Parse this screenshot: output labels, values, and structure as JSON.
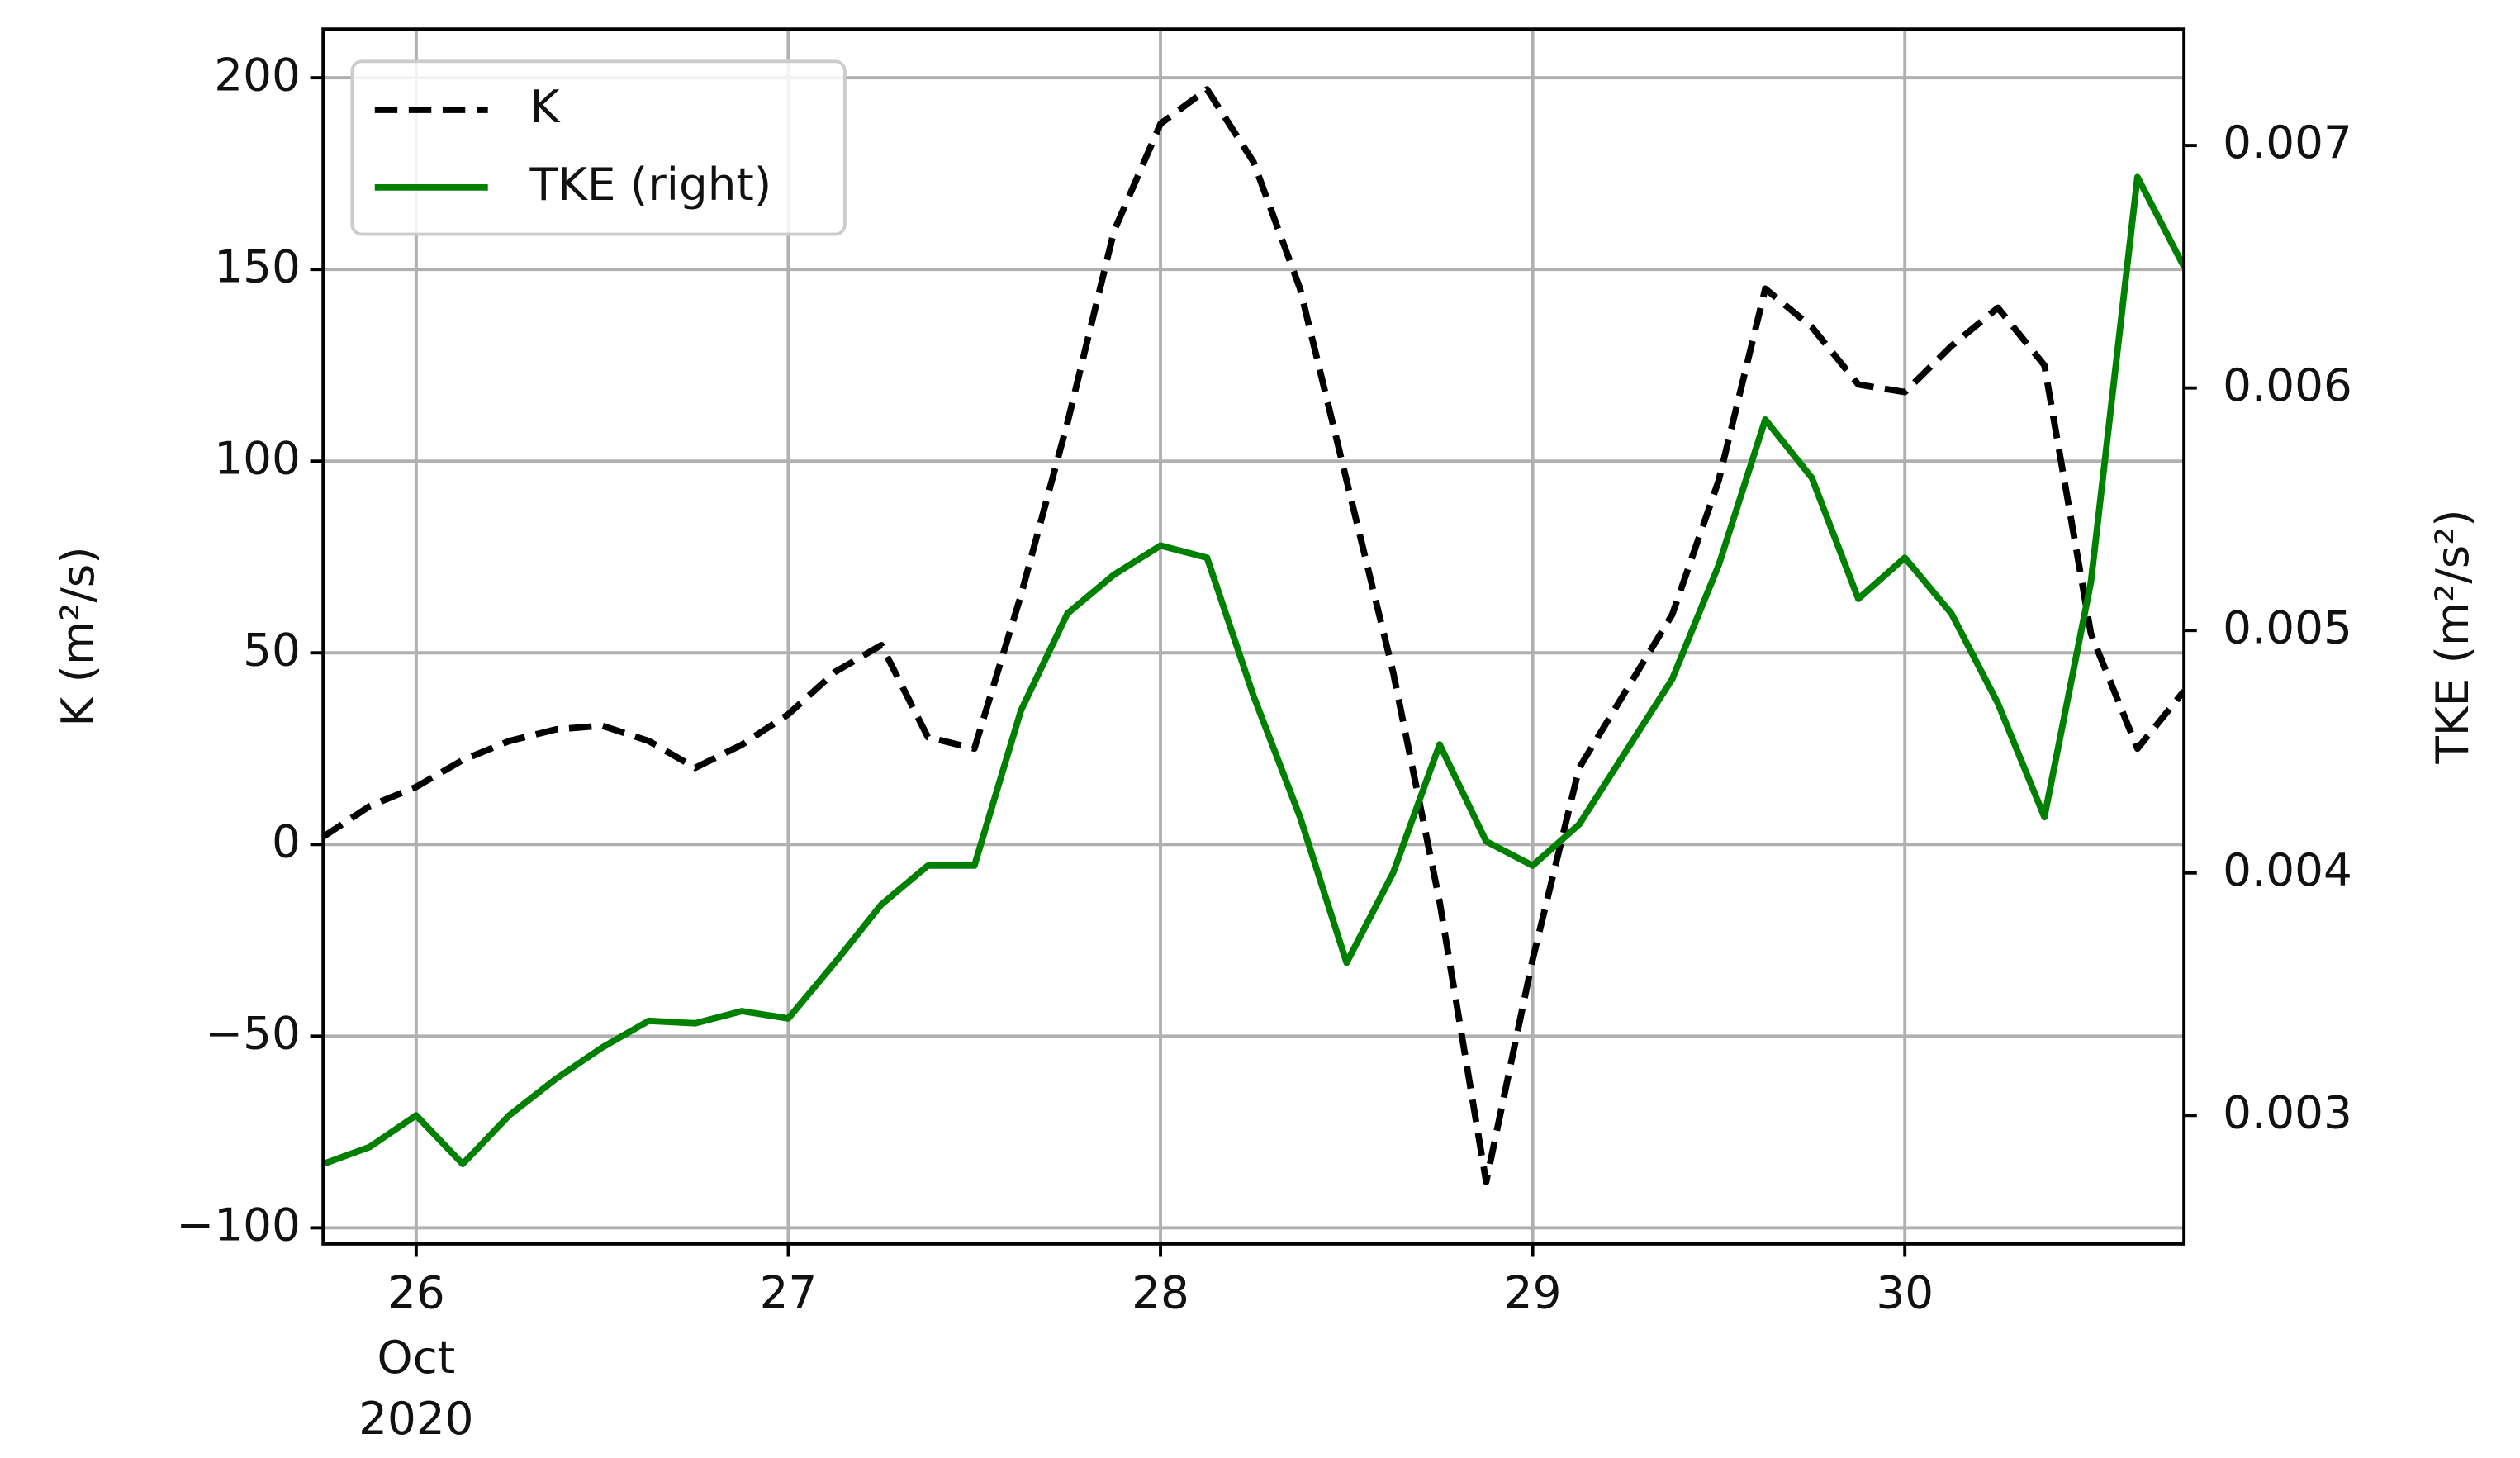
{
  "chart_data": {
    "type": "line",
    "ylabel": "K (m²/s)",
    "y2label": "TKE (m²/s²)",
    "x": [
      "2020-10-25 18:00",
      "2020-10-25 21:00",
      "2020-10-26 00:00",
      "2020-10-26 03:00",
      "2020-10-26 06:00",
      "2020-10-26 09:00",
      "2020-10-26 12:00",
      "2020-10-26 15:00",
      "2020-10-26 18:00",
      "2020-10-26 21:00",
      "2020-10-27 00:00",
      "2020-10-27 03:00",
      "2020-10-27 06:00",
      "2020-10-27 09:00",
      "2020-10-27 12:00",
      "2020-10-27 15:00",
      "2020-10-27 18:00",
      "2020-10-27 21:00",
      "2020-10-28 00:00",
      "2020-10-28 03:00",
      "2020-10-28 06:00",
      "2020-10-28 09:00",
      "2020-10-28 12:00",
      "2020-10-28 15:00",
      "2020-10-28 18:00",
      "2020-10-28 21:00",
      "2020-10-29 00:00",
      "2020-10-29 03:00",
      "2020-10-29 06:00",
      "2020-10-29 09:00",
      "2020-10-29 12:00",
      "2020-10-29 15:00",
      "2020-10-29 18:00",
      "2020-10-29 21:00",
      "2020-10-30 00:00",
      "2020-10-30 03:00",
      "2020-10-30 06:00",
      "2020-10-30 09:00",
      "2020-10-30 12:00",
      "2020-10-30 15:00",
      "2020-10-30 18:00"
    ],
    "series": [
      {
        "name": "K",
        "color": "#000000",
        "dash": true,
        "values": [
          2,
          10,
          15,
          22,
          27,
          30,
          31,
          27,
          20,
          26,
          34,
          45,
          52,
          28,
          25,
          65,
          110,
          160,
          188,
          197,
          178,
          145,
          95,
          45,
          -15,
          -88,
          -30,
          20,
          40,
          60,
          95,
          145,
          135,
          120,
          118,
          130,
          140,
          125,
          55,
          25,
          40
        ]
      },
      {
        "name": "TKE (right)",
        "color": "#008000",
        "axis": "y2",
        "values": [
          0.0028,
          0.00287,
          0.003,
          0.0028,
          0.003,
          0.00315,
          0.00328,
          0.00339,
          0.00338,
          0.00343,
          0.0034,
          0.00363,
          0.00387,
          0.00403,
          0.00403,
          0.00467,
          0.00507,
          0.00523,
          0.00535,
          0.0053,
          0.00473,
          0.00423,
          0.00363,
          0.004,
          0.00453,
          0.00413,
          0.00403,
          0.0042,
          0.0045,
          0.0048,
          0.00527,
          0.00587,
          0.00563,
          0.00513,
          0.0053,
          0.00507,
          0.0047,
          0.00423,
          0.0052,
          0.00687,
          0.0065
        ]
      }
    ],
    "xlim": [
      "2020-10-25 18:00",
      "2020-10-30 18:00"
    ],
    "xticks": [
      {
        "value": "2020-10-26 00:00",
        "label": "26"
      },
      {
        "value": "2020-10-27 00:00",
        "label": "27"
      },
      {
        "value": "2020-10-28 00:00",
        "label": "28"
      },
      {
        "value": "2020-10-29 00:00",
        "label": "29"
      },
      {
        "value": "2020-10-30 00:00",
        "label": "30"
      }
    ],
    "xtick_sublabels": [
      "Oct",
      "2020"
    ],
    "ylim": [
      -104.2,
      212.7
    ],
    "yticks": [
      {
        "value": -100,
        "label": "−100"
      },
      {
        "value": -50,
        "label": "−50"
      },
      0,
      50,
      100,
      150,
      200
    ],
    "y2lim": [
      0.00247,
      0.00748
    ],
    "y2ticks": [
      0.003,
      0.004,
      0.005,
      0.006,
      0.007
    ],
    "grid": true,
    "legend": "upper left"
  }
}
